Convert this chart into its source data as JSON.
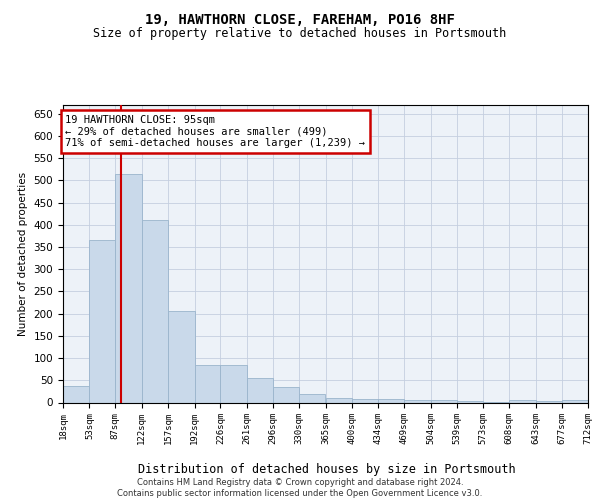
{
  "title": "19, HAWTHORN CLOSE, FAREHAM, PO16 8HF",
  "subtitle": "Size of property relative to detached houses in Portsmouth",
  "xlabel": "Distribution of detached houses by size in Portsmouth",
  "ylabel": "Number of detached properties",
  "bar_color": "#c9d9ea",
  "bar_edge_color": "#9ab4cc",
  "bar_values": [
    37,
    365,
    515,
    410,
    205,
    85,
    85,
    55,
    35,
    20,
    10,
    7,
    7,
    5,
    5,
    3,
    2,
    5,
    3,
    5
  ],
  "bin_edges": [
    18,
    53,
    87,
    122,
    157,
    192,
    226,
    261,
    296,
    330,
    365,
    400,
    434,
    469,
    504,
    539,
    573,
    608,
    643,
    677,
    712
  ],
  "bin_labels": [
    "18sqm",
    "53sqm",
    "87sqm",
    "122sqm",
    "157sqm",
    "192sqm",
    "226sqm",
    "261sqm",
    "296sqm",
    "330sqm",
    "365sqm",
    "400sqm",
    "434sqm",
    "469sqm",
    "504sqm",
    "539sqm",
    "573sqm",
    "608sqm",
    "643sqm",
    "677sqm",
    "712sqm"
  ],
  "ylim": [
    0,
    670
  ],
  "yticks": [
    0,
    50,
    100,
    150,
    200,
    250,
    300,
    350,
    400,
    450,
    500,
    550,
    600,
    650
  ],
  "red_line_x": 95,
  "annotation_title": "19 HAWTHORN CLOSE: 95sqm",
  "annotation_line1": "← 29% of detached houses are smaller (499)",
  "annotation_line2": "71% of semi-detached houses are larger (1,239) →",
  "annotation_color": "#cc0000",
  "background_color": "#edf2f8",
  "grid_color": "#c5cfe0",
  "footer_line1": "Contains HM Land Registry data © Crown copyright and database right 2024.",
  "footer_line2": "Contains public sector information licensed under the Open Government Licence v3.0."
}
